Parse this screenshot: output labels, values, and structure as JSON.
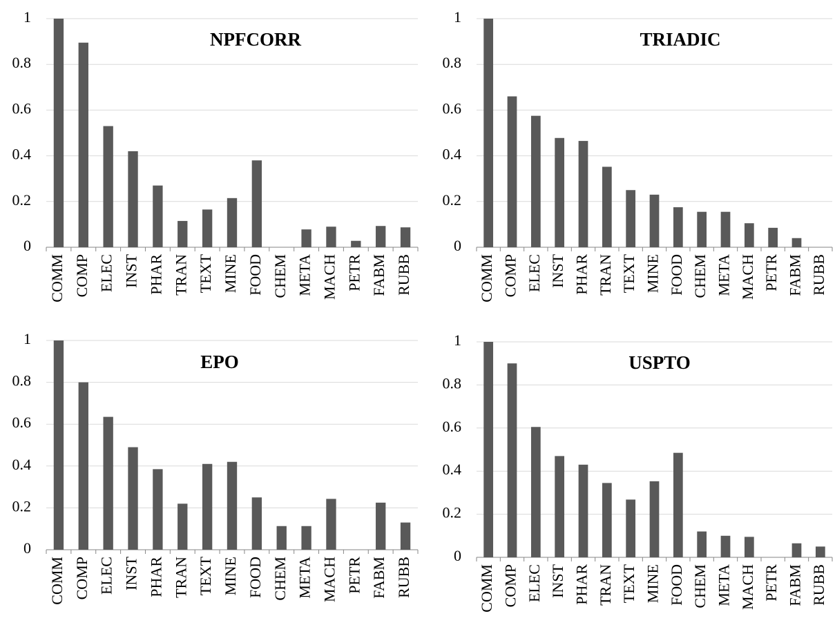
{
  "chart_data": [
    {
      "type": "bar",
      "title": "NPFCORR",
      "color": "#595959",
      "grid": true,
      "categories": [
        "COMM",
        "COMP",
        "ELEC",
        "INST",
        "PHAR",
        "TRAN",
        "TEXT",
        "MINE",
        "FOOD",
        "CHEM",
        "META",
        "MACH",
        "PETR",
        "FABM",
        "RUBB"
      ],
      "values": [
        1,
        0.895,
        0.53,
        0.42,
        0.27,
        0.115,
        0.165,
        0.215,
        0.38,
        0,
        0.078,
        0.09,
        0.028,
        0.093,
        0.087
      ],
      "ylim": [
        0,
        1
      ],
      "yticks": [
        0,
        0.2,
        0.4,
        0.6,
        0.8,
        1
      ]
    },
    {
      "type": "bar",
      "title": "TRIADIC",
      "color": "#595959",
      "grid": true,
      "categories": [
        "COMM",
        "COMP",
        "ELEC",
        "INST",
        "PHAR",
        "TRAN",
        "TEXT",
        "MINE",
        "FOOD",
        "CHEM",
        "META",
        "MACH",
        "PETR",
        "FABM",
        "RUBB"
      ],
      "values": [
        1,
        0.66,
        0.575,
        0.478,
        0.465,
        0.352,
        0.25,
        0.23,
        0.175,
        0.155,
        0.155,
        0.105,
        0.085,
        0.04,
        0
      ],
      "ylim": [
        0,
        1
      ],
      "yticks": [
        0,
        0.2,
        0.4,
        0.6,
        0.8,
        1
      ]
    },
    {
      "type": "bar",
      "title": "EPO",
      "color": "#595959",
      "grid": true,
      "categories": [
        "COMM",
        "COMP",
        "ELEC",
        "INST",
        "PHAR",
        "TRAN",
        "TEXT",
        "MINE",
        "FOOD",
        "CHEM",
        "META",
        "MACH",
        "PETR",
        "FABM",
        "RUBB"
      ],
      "values": [
        1,
        0.8,
        0.635,
        0.49,
        0.385,
        0.22,
        0.41,
        0.42,
        0.25,
        0.113,
        0.113,
        0.243,
        0,
        0.225,
        0.13
      ],
      "ylim": [
        0,
        1
      ],
      "yticks": [
        0,
        0.2,
        0.4,
        0.6,
        0.8,
        1
      ]
    },
    {
      "type": "bar",
      "title": "USPTO",
      "color": "#595959",
      "grid": true,
      "categories": [
        "COMM",
        "COMP",
        "ELEC",
        "INST",
        "PHAR",
        "TRAN",
        "TEXT",
        "MINE",
        "FOOD",
        "CHEM",
        "META",
        "MACH",
        "PETR",
        "FABM",
        "RUBB"
      ],
      "values": [
        1,
        0.9,
        0.605,
        0.47,
        0.43,
        0.345,
        0.268,
        0.353,
        0.485,
        0.12,
        0.1,
        0.095,
        0,
        0.065,
        0.05
      ],
      "ylim": [
        0,
        1
      ],
      "yticks": [
        0,
        0.2,
        0.4,
        0.6,
        0.8,
        1
      ]
    }
  ]
}
